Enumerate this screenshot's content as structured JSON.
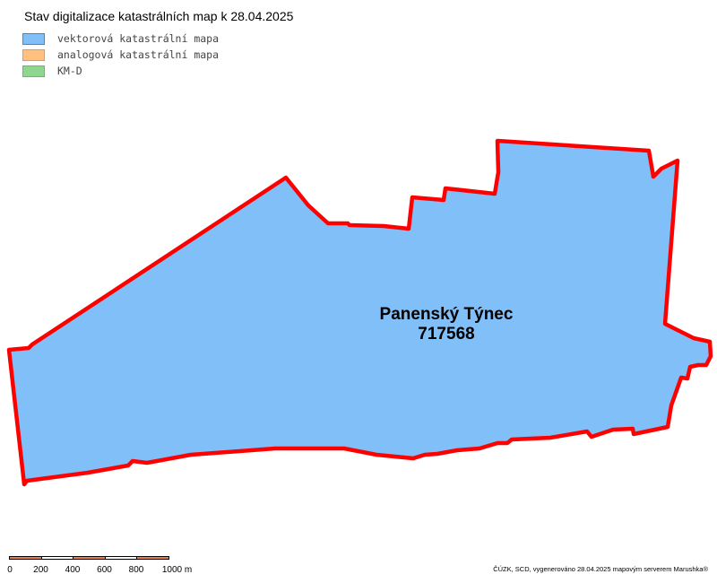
{
  "map": {
    "title": "Stav digitalizace katastrálních map k 28.04.2025",
    "legend": [
      {
        "label": "vektorová katastrální mapa",
        "fill": "#80bff7",
        "border": "#3a8ad8"
      },
      {
        "label": "analogová katastrální mapa",
        "fill": "#ffc080",
        "border": "#e89a50"
      },
      {
        "label": "KM-D",
        "fill": "#8fd68f",
        "border": "#6ab86a"
      }
    ],
    "territory": {
      "name": "Panenský Týnec",
      "code": "717568",
      "fill": "#80bff7",
      "border": "#ff0000"
    },
    "scale": {
      "labels": [
        "0",
        "200",
        "400",
        "600",
        "800",
        "1000 m"
      ],
      "fill_colors": [
        "#e8804a",
        "#ffffff",
        "#e8804a",
        "#ffffff",
        "#e8804a"
      ]
    },
    "credit": "ČÚZK, SCD, vygenerováno 28.04.2025 mapovým serverem Marushka®"
  }
}
